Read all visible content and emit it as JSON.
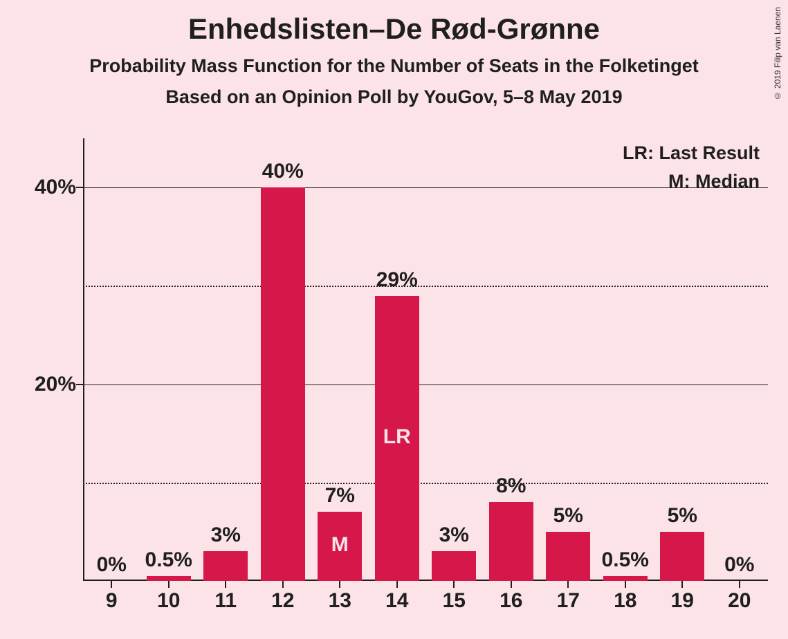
{
  "copyright": "© 2019 Filip van Laenen",
  "chart": {
    "type": "bar",
    "title": "Enhedslisten–De Rød-Grønne",
    "subtitle": "Probability Mass Function for the Number of Seats in the Folketinget",
    "subtitle2": "Based on an Opinion Poll by YouGov, 5–8 May 2019",
    "legend": {
      "lr": "LR: Last Result",
      "m": "M: Median"
    },
    "bar_color": "#d6174a",
    "background_color": "#fce3e8",
    "text_color": "#1f1f1f",
    "inner_label_color": "#fce3e8",
    "grid_color": "#1f1f1f",
    "ylim": [
      0,
      45
    ],
    "y_major_ticks": [
      20,
      40
    ],
    "y_minor_ticks": [
      10,
      30
    ],
    "label_fontsize": 30,
    "title_fontsize": 42,
    "subtitle_fontsize": 27,
    "bar_width_ratio": 0.78,
    "categories": [
      "9",
      "10",
      "11",
      "12",
      "13",
      "14",
      "15",
      "16",
      "17",
      "18",
      "19",
      "20"
    ],
    "values": [
      0,
      0.5,
      3,
      40,
      7,
      29,
      3,
      8,
      5,
      0.5,
      5,
      0
    ],
    "value_labels": [
      "0%",
      "0.5%",
      "3%",
      "40%",
      "7%",
      "29%",
      "3%",
      "8%",
      "5%",
      "0.5%",
      "5%",
      "0%"
    ],
    "inner_labels": {
      "13": "M",
      "14": "LR"
    }
  }
}
